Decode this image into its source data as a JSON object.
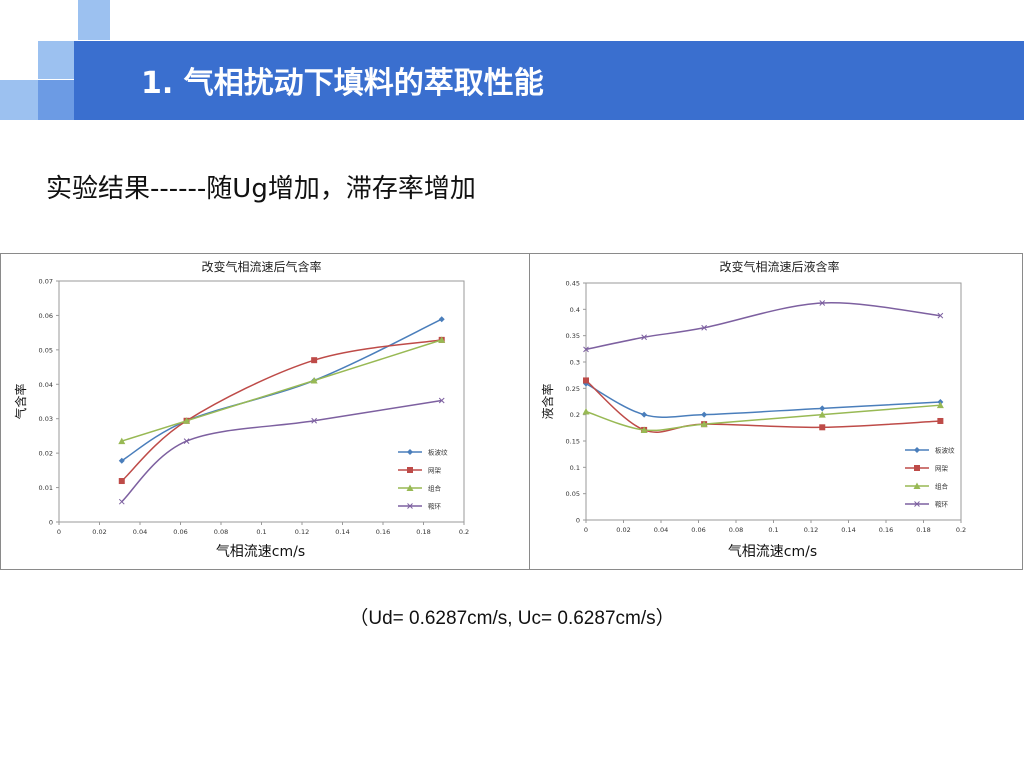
{
  "slide": {
    "title": "1. 气相扰动下填料的萃取性能",
    "subtitle": "实验结果------随Ug增加，滞存率增加",
    "footnote": "（Ud= 0.6287cm/s, Uc= 0.6287cm/s）"
  },
  "colors": {
    "header": "#3a6fcf",
    "deco_light": "#9cc1f0",
    "deco_mid": "#6c9be4",
    "series": [
      "#4a7ebb",
      "#be4b48",
      "#98b954",
      "#7d60a0"
    ]
  },
  "chart_data": [
    {
      "type": "line",
      "title": "改变气相流速后气含率",
      "xlabel": "气相流速cm/s",
      "ylabel": "气含率",
      "xlim": [
        0,
        0.2
      ],
      "ylim": [
        0,
        0.07
      ],
      "xticks": [
        "0",
        "0.02",
        "0.04",
        "0.06",
        "0.08",
        "0.1",
        "0.12",
        "0.14",
        "0.16",
        "0.18",
        "0.2"
      ],
      "yticks": [
        "0",
        "0.01",
        "0.02",
        "0.03",
        "0.04",
        "0.05",
        "0.06",
        "0.07"
      ],
      "legend": "right",
      "series": [
        {
          "name": "板波纹",
          "x": [
            0.031,
            0.063,
            0.126,
            0.189
          ],
          "values": [
            0.0178,
            0.0294,
            0.0411,
            0.0589
          ]
        },
        {
          "name": "网架",
          "x": [
            0.031,
            0.063,
            0.126,
            0.189
          ],
          "values": [
            0.0119,
            0.0294,
            0.047,
            0.0529
          ]
        },
        {
          "name": "组合",
          "x": [
            0.031,
            0.063,
            0.126,
            0.189
          ],
          "values": [
            0.0235,
            0.0294,
            0.0411,
            0.0529
          ]
        },
        {
          "name": "鞍环",
          "x": [
            0.031,
            0.063,
            0.126,
            0.189
          ],
          "values": [
            0.0059,
            0.0235,
            0.0294,
            0.0353
          ]
        }
      ]
    },
    {
      "type": "line",
      "title": "改变气相流速后液含率",
      "xlabel": "气相流速cm/s",
      "ylabel": "液含率",
      "xlim": [
        0,
        0.2
      ],
      "ylim": [
        0,
        0.45
      ],
      "xticks": [
        "0",
        "0.02",
        "0.04",
        "0.06",
        "0.08",
        "0.1",
        "0.12",
        "0.14",
        "0.16",
        "0.18",
        "0.2"
      ],
      "yticks": [
        "0",
        "0.05",
        "0.1",
        "0.15",
        "0.2",
        "0.25",
        "0.3",
        "0.35",
        "0.4",
        "0.45"
      ],
      "legend": "right",
      "series": [
        {
          "name": "板波纹",
          "x": [
            0,
            0.031,
            0.063,
            0.126,
            0.189
          ],
          "values": [
            0.259,
            0.2,
            0.2,
            0.212,
            0.224
          ]
        },
        {
          "name": "网架",
          "x": [
            0,
            0.031,
            0.063,
            0.126,
            0.189
          ],
          "values": [
            0.265,
            0.171,
            0.182,
            0.176,
            0.188
          ]
        },
        {
          "name": "组合",
          "x": [
            0,
            0.031,
            0.063,
            0.126,
            0.189
          ],
          "values": [
            0.206,
            0.171,
            0.182,
            0.2,
            0.218
          ]
        },
        {
          "name": "鞍环",
          "x": [
            0,
            0.031,
            0.063,
            0.126,
            0.189
          ],
          "values": [
            0.324,
            0.347,
            0.365,
            0.412,
            0.388
          ]
        }
      ]
    }
  ]
}
